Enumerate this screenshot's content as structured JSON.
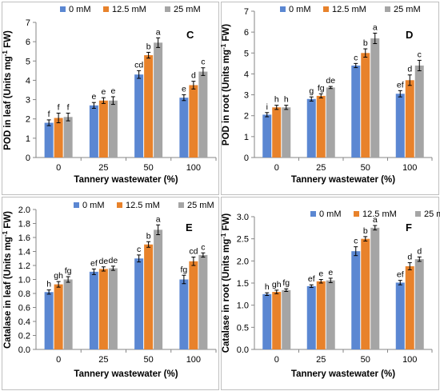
{
  "legend": [
    "0 mM",
    "12.5 mM",
    "25 mM"
  ],
  "series_colors": [
    "#5B87D2",
    "#E8822B",
    "#A5A5A5"
  ],
  "chart_data": [
    {
      "type": "bar",
      "panel_label": "C",
      "ylabel": "POD in leaf (Units mg",
      "ylabel_sup": "-1",
      "ylabel_end": " FW)",
      "xlabel": "Tannery wastewater (%)",
      "categories": [
        "0",
        "25",
        "50",
        "100"
      ],
      "ylim": [
        0,
        7
      ],
      "yticks": [
        "0",
        "1",
        "2",
        "3",
        "4",
        "5",
        "6",
        "7"
      ],
      "series": [
        {
          "name": "0 mM",
          "values": [
            1.8,
            2.7,
            4.3,
            3.1
          ],
          "errors": [
            0.15,
            0.15,
            0.2,
            0.15
          ],
          "letters": [
            "f",
            "e",
            "cd",
            "e"
          ]
        },
        {
          "name": "12.5 mM",
          "values": [
            2.05,
            2.95,
            5.3,
            3.75
          ],
          "errors": [
            0.25,
            0.15,
            0.15,
            0.2
          ],
          "letters": [
            "f",
            "e",
            "b",
            "d"
          ]
        },
        {
          "name": "25 mM",
          "values": [
            2.1,
            2.95,
            5.95,
            4.45
          ],
          "errors": [
            0.2,
            0.2,
            0.25,
            0.2
          ],
          "letters": [
            "f",
            "e",
            "a",
            "c"
          ]
        }
      ]
    },
    {
      "type": "bar",
      "panel_label": "D",
      "ylabel": "POD in root (Units mg",
      "ylabel_sup": "-1",
      "ylabel_end": " FW)",
      "xlabel": "Tannery wastewater (%)",
      "categories": [
        "0",
        "25",
        "50",
        "100"
      ],
      "ylim": [
        0,
        7
      ],
      "yticks": [
        "0",
        "1",
        "2",
        "3",
        "4",
        "5",
        "6",
        "7"
      ],
      "series": [
        {
          "name": "0 mM",
          "values": [
            2.05,
            2.8,
            4.4,
            3.05
          ],
          "errors": [
            0.1,
            0.1,
            0.1,
            0.15
          ],
          "letters": [
            "i",
            "g",
            "c",
            "ef"
          ]
        },
        {
          "name": "12.5 mM",
          "values": [
            2.4,
            2.95,
            5.0,
            3.7
          ],
          "errors": [
            0.1,
            0.1,
            0.2,
            0.25
          ],
          "letters": [
            "h",
            "fg",
            "b",
            "d"
          ]
        },
        {
          "name": "25 mM",
          "values": [
            2.4,
            3.35,
            5.7,
            4.4
          ],
          "errors": [
            0.1,
            0.05,
            0.25,
            0.25
          ],
          "letters": [
            "h",
            "de",
            "a",
            "c"
          ]
        }
      ]
    },
    {
      "type": "bar",
      "panel_label": "E",
      "ylabel": "Catalase in leaf (Units mg",
      "ylabel_sup": "-1",
      "ylabel_end": " FW)",
      "xlabel": "Tannery wastewater (%)",
      "categories": [
        "0",
        "25",
        "50",
        "100"
      ],
      "ylim": [
        0,
        2
      ],
      "yticks": [
        "0.0",
        "0.2",
        "0.4",
        "0.6",
        "0.8",
        "1.0",
        "1.2",
        "1.4",
        "1.6",
        "1.8",
        "2.0"
      ],
      "series": [
        {
          "name": "0 mM",
          "values": [
            0.82,
            1.11,
            1.3,
            1.0
          ],
          "errors": [
            0.03,
            0.04,
            0.05,
            0.06
          ],
          "letters": [
            "h",
            "ef",
            "c",
            "fg"
          ]
        },
        {
          "name": "12.5 mM",
          "values": [
            0.93,
            1.15,
            1.5,
            1.26
          ],
          "errors": [
            0.04,
            0.03,
            0.04,
            0.06
          ],
          "letters": [
            "gh",
            "de",
            "b",
            "cd"
          ]
        },
        {
          "name": "25 mM",
          "values": [
            1.0,
            1.16,
            1.71,
            1.35
          ],
          "errors": [
            0.04,
            0.03,
            0.07,
            0.03
          ],
          "letters": [
            "fg",
            "de",
            "a",
            "c"
          ]
        }
      ]
    },
    {
      "type": "bar",
      "panel_label": "F",
      "ylabel": "Catalase in root (Units mg",
      "ylabel_sup": "-1",
      "ylabel_end": " FW)",
      "xlabel": "Tannery wastewater (%)",
      "categories": [
        "0",
        "25",
        "50",
        "100"
      ],
      "ylim": [
        0,
        3
      ],
      "yticks": [
        "0.0",
        "0.5",
        "1.0",
        "1.5",
        "2.0",
        "2.5",
        "3.0"
      ],
      "series": [
        {
          "name": "0 mM",
          "values": [
            1.25,
            1.43,
            2.22,
            1.51
          ],
          "errors": [
            0.03,
            0.03,
            0.1,
            0.05
          ],
          "letters": [
            "h",
            "ef",
            "c",
            "ef"
          ]
        },
        {
          "name": "12.5 mM",
          "values": [
            1.3,
            1.54,
            2.5,
            1.88
          ],
          "errors": [
            0.04,
            0.04,
            0.05,
            0.08
          ],
          "letters": [
            "gh",
            "e",
            "b",
            "d"
          ]
        },
        {
          "name": "25 mM",
          "values": [
            1.34,
            1.56,
            2.75,
            2.04
          ],
          "errors": [
            0.03,
            0.05,
            0.05,
            0.05
          ],
          "letters": [
            "fg",
            "e",
            "a",
            "d"
          ]
        }
      ]
    }
  ]
}
